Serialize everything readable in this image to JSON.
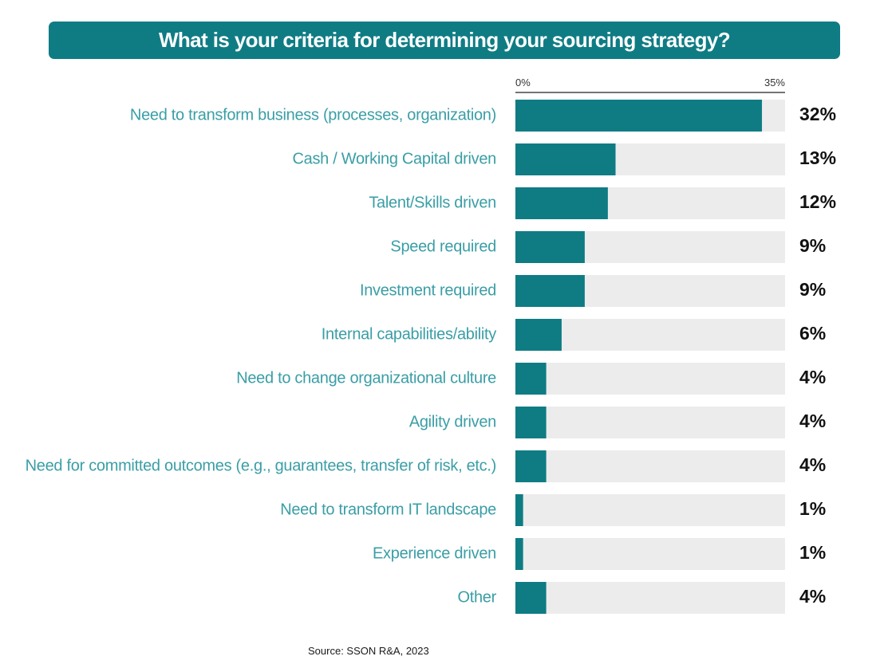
{
  "chart_data": {
    "type": "bar",
    "orientation": "horizontal",
    "title": "What is your criteria for determining your sourcing strategy?",
    "categories": [
      "Need to transform business (processes, organization)",
      "Cash / Working Capital driven",
      "Talent/Skills driven",
      "Speed required",
      "Investment required",
      "Internal capabilities/ability",
      "Need to change organizational culture",
      "Agility driven",
      "Need for committed outcomes (e.g., guarantees, transfer of risk, etc.)",
      "Need to transform IT landscape",
      "Experience driven",
      "Other"
    ],
    "values": [
      32,
      13,
      12,
      9,
      9,
      6,
      4,
      4,
      4,
      1,
      1,
      4
    ],
    "value_labels": [
      "32%",
      "13%",
      "12%",
      "9%",
      "9%",
      "6%",
      "4%",
      "4%",
      "4%",
      "1%",
      "1%",
      "4%"
    ],
    "xlim": [
      0,
      35
    ],
    "axis_labels": {
      "min": "0%",
      "max": "35%"
    },
    "grid": false,
    "colors": {
      "bar": "#0f7c84",
      "track": "#ececec",
      "label": "#3a9ea6",
      "value": "#111111"
    }
  },
  "source": "Source: SSON R&A, 2023"
}
